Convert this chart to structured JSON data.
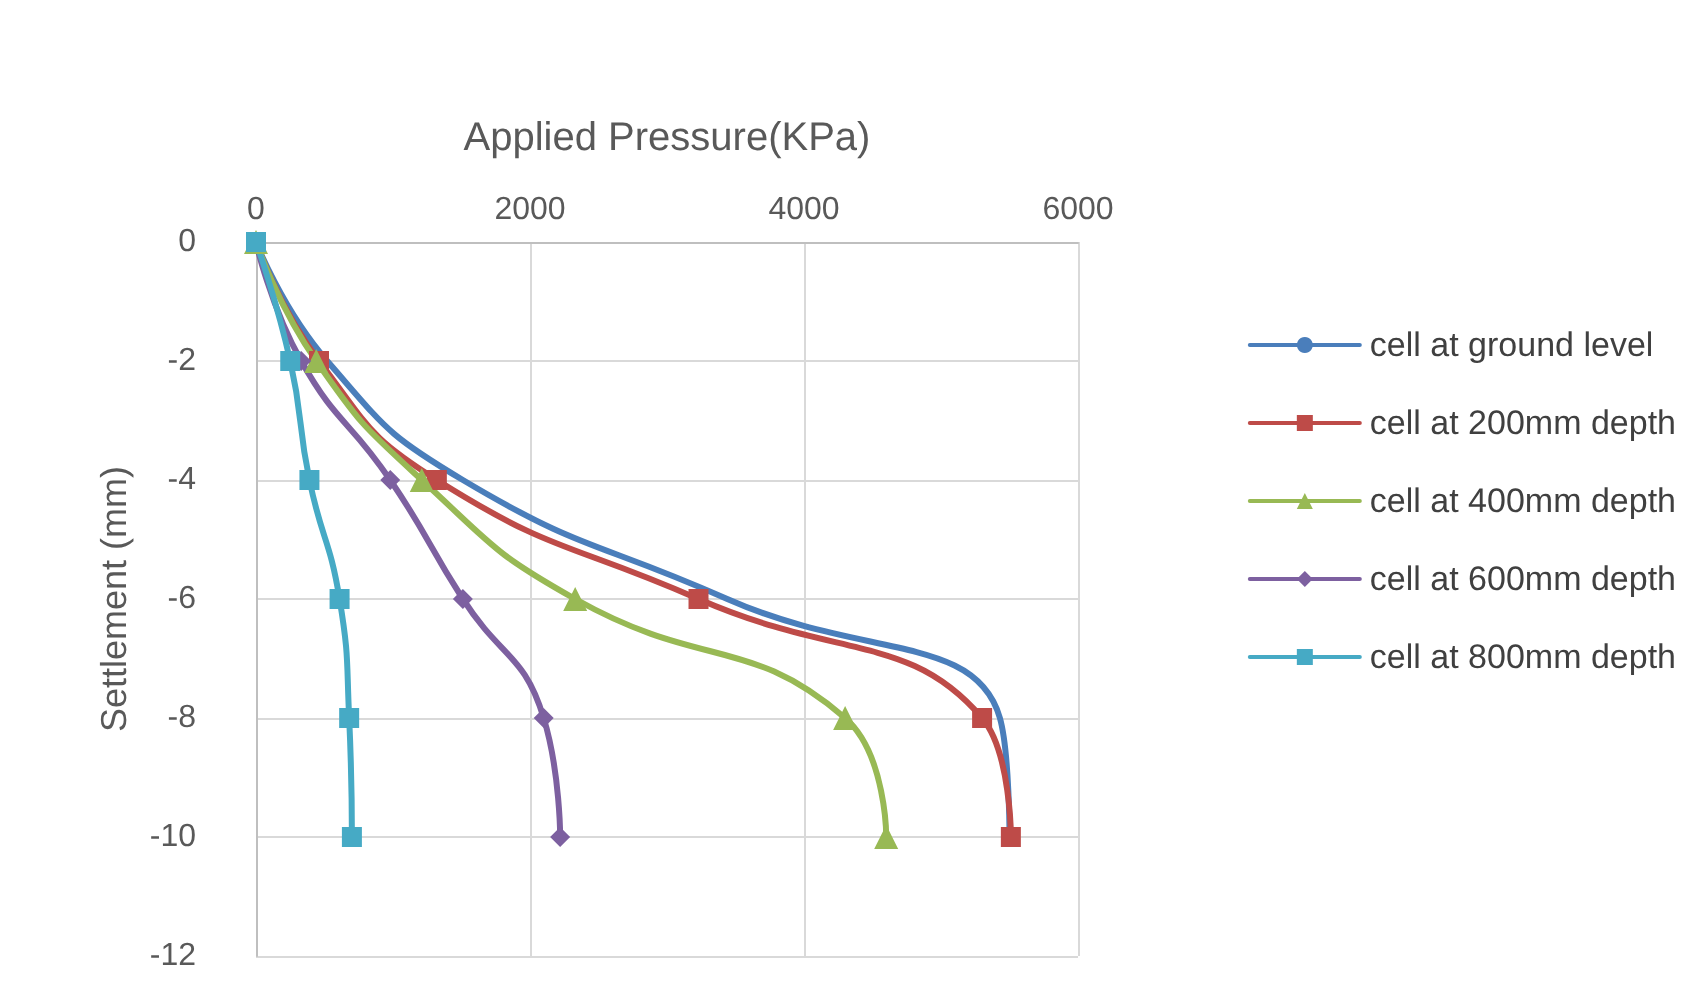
{
  "chart_data": {
    "type": "line",
    "xlabel": "Applied Pressure(KPa)",
    "ylabel": "Settlement (mm)",
    "xlim": [
      0,
      6000
    ],
    "xticks": [
      0,
      2000,
      4000,
      6000
    ],
    "ylim": [
      -12,
      0
    ],
    "yticks": [
      -12,
      -10,
      -8,
      -6,
      -4,
      -2,
      0
    ],
    "grid": true,
    "legend": "right",
    "series": [
      {
        "name": "cell at ground level",
        "color": "#4a7ebb",
        "marker": "none",
        "x": [
          0,
          520,
          1510,
          3440,
          5430,
          5500
        ],
        "values": [
          0,
          -2,
          -4,
          -6,
          -8,
          -10
        ]
      },
      {
        "name": "cell at 200mm depth",
        "color": "#be4b48",
        "marker": "square",
        "x": [
          0,
          460,
          1320,
          3230,
          5300,
          5510
        ],
        "values": [
          0,
          -2,
          -4,
          -6,
          -8,
          -10
        ]
      },
      {
        "name": "cell at 400mm depth",
        "color": "#98b954",
        "marker": "triangle",
        "x": [
          0,
          440,
          1210,
          2330,
          4300,
          4600
        ],
        "values": [
          0,
          -2,
          -4,
          -6,
          -8,
          -10
        ]
      },
      {
        "name": "cell at 600mm depth",
        "color": "#7d60a0",
        "marker": "diamond",
        "x": [
          0,
          330,
          980,
          1510,
          2100,
          2220
        ],
        "values": [
          0,
          -2,
          -4,
          -6,
          -8,
          -10
        ]
      },
      {
        "name": "cell at 800mm depth",
        "color": "#46aac5",
        "marker": "square",
        "x": [
          0,
          250,
          390,
          610,
          680,
          700
        ],
        "values": [
          0,
          -2,
          -4,
          -6,
          -8,
          -10
        ]
      }
    ]
  }
}
